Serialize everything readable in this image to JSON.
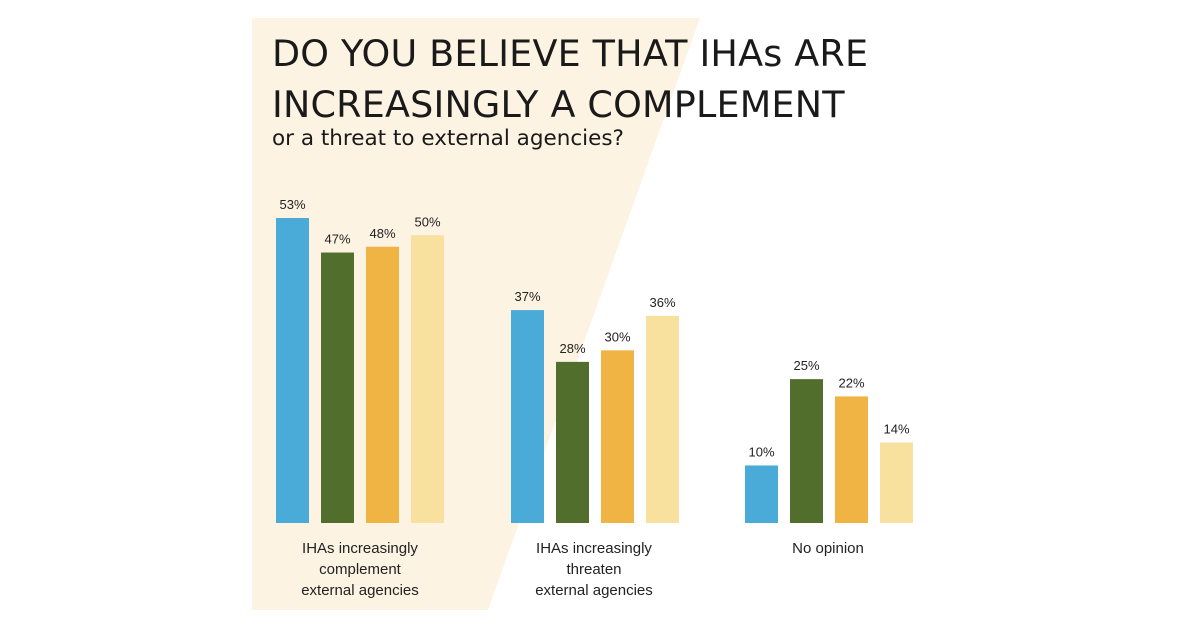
{
  "title_line1": "DO YOU BELIEVE THAT IHAs ARE",
  "title_line2": "INCREASINGLY A COMPLEMENT",
  "subtitle": "or a threat to external agencies?",
  "colors": {
    "background_panel": "#fdf3e3",
    "series": [
      "#4aabd8",
      "#526e2d",
      "#f0b444",
      "#f8e09e"
    ]
  },
  "chart_data": {
    "type": "bar",
    "title": "DO YOU BELIEVE THAT IHAs ARE INCREASINGLY A COMPLEMENT",
    "subtitle": "or a threat to external agencies?",
    "xlabel": "",
    "ylabel": "",
    "ylim": [
      0,
      53
    ],
    "grid": false,
    "legend": "none",
    "categories": [
      [
        "IHAs increasingly",
        "complement",
        "external agencies"
      ],
      [
        "IHAs increasingly",
        "threaten",
        "external agencies"
      ],
      [
        "No opinion"
      ]
    ],
    "series": [
      {
        "values": [
          53,
          37,
          10
        ],
        "labels": [
          "53%",
          "37%",
          "10%"
        ]
      },
      {
        "values": [
          47,
          28,
          25
        ],
        "labels": [
          "47%",
          "28%",
          "25%"
        ]
      },
      {
        "values": [
          48,
          30,
          22
        ],
        "labels": [
          "48%",
          "30%",
          "22%"
        ]
      },
      {
        "values": [
          50,
          36,
          14
        ],
        "labels": [
          "50%",
          "36%",
          "14%"
        ]
      }
    ]
  }
}
